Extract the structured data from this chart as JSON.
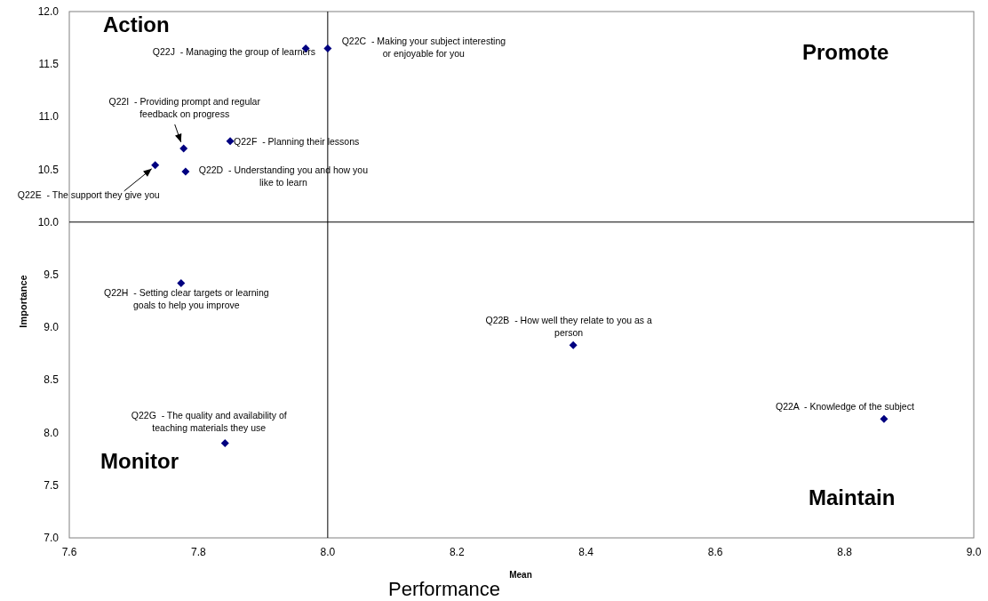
{
  "chart_data": {
    "type": "scatter",
    "xlabel": "Mean",
    "ylabel": "Importance",
    "x": [
      8.861,
      8.38,
      8.0,
      7.78,
      7.733,
      7.849,
      7.841,
      7.773,
      7.777,
      7.966
    ],
    "series": [
      {
        "color": "#000080",
        "values": [
          8.13,
          8.83,
          11.65,
          10.48,
          10.54,
          10.77,
          7.9,
          9.42,
          10.7,
          11.65
        ]
      }
    ],
    "marker": "diamond",
    "grid": false,
    "xlim": [
      7.6,
      9.0
    ],
    "xticks": [
      {
        "value": 7.6,
        "label": "7.6"
      },
      {
        "value": 7.8,
        "label": "7.8"
      },
      {
        "value": 8.0,
        "label": "8.0"
      },
      {
        "value": 8.2,
        "label": "8.2"
      },
      {
        "value": 8.4,
        "label": "8.4"
      },
      {
        "value": 8.6,
        "label": "8.6"
      },
      {
        "value": 8.8,
        "label": "8.8"
      },
      {
        "value": 9.0,
        "label": "9.0"
      }
    ],
    "ylim": [
      7.0,
      12.0
    ],
    "yticks": [
      {
        "value": 7.0,
        "label": "7.0"
      },
      {
        "value": 7.5,
        "label": "7.5"
      },
      {
        "value": 8.0,
        "label": "8.0"
      },
      {
        "value": 8.5,
        "label": "8.5"
      },
      {
        "value": 9.0,
        "label": "9.0"
      },
      {
        "value": 9.5,
        "label": "9.5"
      },
      {
        "value": 10.0,
        "label": "10.0"
      },
      {
        "value": 10.5,
        "label": "10.5"
      },
      {
        "value": 11.0,
        "label": "11.0"
      },
      {
        "value": 11.5,
        "label": "11.5"
      },
      {
        "value": 12.0,
        "label": "12.0"
      }
    ],
    "ref_lines": [
      {
        "axis": "x",
        "value": 8.0,
        "color": "#000000"
      },
      {
        "axis": "y",
        "value": 10.0,
        "color": "#000000"
      }
    ],
    "annotations": [
      "Action",
      "Promote",
      "Monitor",
      "Maintain",
      "Performance",
      {
        "text": "Q22A  - Knowledge of the subject",
        "x": 8.861,
        "y": 8.13
      },
      {
        "text": "Q22B  - How well they relate to you as a person",
        "x": 8.38,
        "y": 8.83
      },
      {
        "text": "Q22C  - Making your subject interesting or enjoyable for you",
        "x": 8.0,
        "y": 11.65
      },
      {
        "text": "Q22D  - Understanding you and how you like to learn",
        "x": 7.78,
        "y": 10.48
      },
      {
        "text": "Q22E  - The support they give you",
        "x": 7.733,
        "y": 10.54
      },
      {
        "text": "Q22F  - Planning their lessons",
        "x": 7.849,
        "y": 10.77
      },
      {
        "text": "Q22G  - The quality and availability of teaching materials they use",
        "x": 7.841,
        "y": 7.9
      },
      {
        "text": "Q22H  - Setting clear targets or learning goals to help you improve",
        "x": 7.773,
        "y": 9.42
      },
      {
        "text": "Q22I  - Providing prompt and regular feedback on progress",
        "x": 7.777,
        "y": 10.7
      },
      {
        "text": "Q22J  - Managing the group of learners",
        "x": 7.966,
        "y": 11.65
      }
    ]
  }
}
